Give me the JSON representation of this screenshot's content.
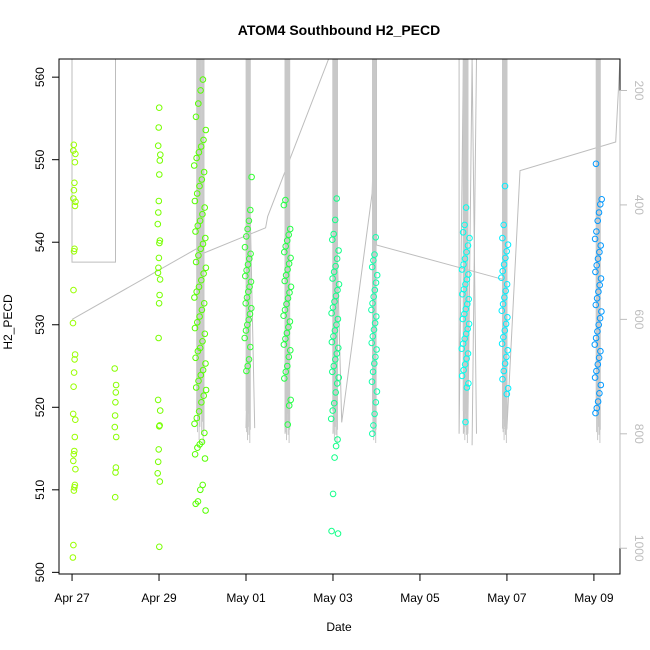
{
  "chart_data": {
    "type": "scatter",
    "title": "ATOM4 Southbound H2_PECD",
    "xlabel": "Date",
    "ylabel": "H2_PECD",
    "xlim": [
      -0.3,
      12.6
    ],
    "ylim": [
      499.8,
      562.2
    ],
    "y2lim": [
      1045,
      145
    ],
    "x_ticks": [
      {
        "value": 0,
        "label": "Apr 27"
      },
      {
        "value": 2,
        "label": "Apr 29"
      },
      {
        "value": 4,
        "label": "May 01"
      },
      {
        "value": 6,
        "label": "May 03"
      },
      {
        "value": 8,
        "label": "May 05"
      },
      {
        "value": 10,
        "label": "May 07"
      },
      {
        "value": 12,
        "label": "May 09"
      }
    ],
    "y_ticks": [
      500,
      510,
      520,
      530,
      540,
      550,
      560
    ],
    "y2_ticks": [
      200,
      400,
      600,
      800,
      1000
    ],
    "clusters": [
      {
        "x": 0.05,
        "spread": 0.03,
        "color": "#99ff00",
        "points": [
          501.8,
          503.3,
          509.9,
          510.3,
          510.6,
          512.5,
          513.5,
          514.3,
          514.7,
          516.4,
          518.5,
          519.2,
          522.5,
          524.2,
          525.8,
          526.4,
          530.2,
          534.2,
          538.9,
          539.2,
          544.4,
          544.9,
          545.3,
          546.3,
          547.2,
          549.7,
          550.7,
          551.1,
          551.8
        ]
      },
      {
        "x": 1.0,
        "spread": 0.02,
        "color": "#88ff00",
        "points": [
          509.1,
          512.1,
          512.7,
          516.4,
          517.6,
          519.0,
          520.6,
          521.8,
          522.7,
          524.7
        ]
      },
      {
        "x": 2.0,
        "spread": 0.03,
        "color": "#77ff00",
        "points": [
          503.1,
          511.0,
          512.0,
          513.4,
          514.9,
          517.7,
          517.8,
          519.6,
          520.9,
          528.4,
          532.6,
          533.6,
          535.5,
          536.3,
          536.9,
          538.1,
          539.9,
          540.2,
          542.2,
          543.6,
          545.0,
          548.2,
          549.9,
          550.6,
          551.7,
          553.9,
          556.3
        ]
      },
      {
        "x": 2.95,
        "spread": 0.14,
        "color": "#55ff00",
        "points": [
          507.5,
          508.3,
          508.6,
          510.0,
          510.6,
          513.8,
          514.3,
          515.1,
          515.5,
          515.8,
          516.9,
          518.0,
          518.7,
          519.5,
          520.6,
          521.4,
          522.1,
          522.4,
          523.2,
          523.9,
          524.5,
          525.3,
          526.0,
          526.8,
          527.2,
          528.0,
          528.9,
          529.6,
          530.3,
          531.0,
          531.8,
          532.6,
          533.3,
          534.0,
          534.6,
          535.4,
          536.2,
          536.9,
          537.6,
          538.4,
          539.2,
          539.8,
          540.5,
          541.3,
          542.0,
          542.6,
          543.4,
          544.2,
          545.0,
          545.9,
          546.8,
          547.6,
          548.5,
          549.3,
          550.2,
          550.9,
          551.6,
          552.4,
          553.6,
          555.2,
          556.8,
          558.4,
          559.7
        ]
      },
      {
        "x": 4.05,
        "spread": 0.08,
        "color": "#33ff33",
        "points": [
          524.4,
          525.0,
          525.8,
          527.3,
          528.4,
          529.3,
          530.0,
          530.6,
          531.3,
          532.0,
          532.6,
          533.3,
          534.0,
          534.6,
          535.2,
          535.9,
          536.6,
          537.3,
          538.0,
          538.6,
          539.4,
          540.7,
          541.6,
          542.6,
          543.9,
          547.9
        ]
      },
      {
        "x": 4.95,
        "spread": 0.09,
        "color": "#22ff44",
        "points": [
          517.9,
          520.2,
          520.9,
          523.5,
          524.3,
          525.0,
          526.1,
          526.9,
          527.6,
          528.3,
          529.0,
          529.7,
          530.4,
          531.1,
          531.8,
          532.5,
          533.2,
          533.9,
          534.6,
          535.3,
          536.0,
          536.7,
          537.4,
          538.1,
          538.8,
          539.5,
          540.2,
          540.9,
          541.6,
          544.5,
          545.1
        ]
      },
      {
        "x": 6.05,
        "spread": 0.09,
        "color": "#11ff88",
        "points": [
          504.7,
          505.0,
          509.5,
          513.9,
          515.3,
          516.1,
          518.6,
          519.6,
          520.5,
          521.8,
          522.9,
          523.6,
          524.3,
          525.0,
          525.8,
          526.5,
          527.2,
          527.9,
          528.6,
          529.3,
          530.0,
          530.7,
          531.4,
          532.1,
          532.8,
          533.5,
          534.2,
          534.9,
          535.6,
          536.4,
          537.1,
          538.0,
          539.0,
          540.3,
          541.0,
          542.7,
          545.3
        ]
      },
      {
        "x": 6.95,
        "spread": 0.07,
        "color": "#11ffaa",
        "points": [
          516.8,
          517.8,
          519.2,
          520.6,
          521.9,
          523.1,
          524.3,
          525.3,
          526.1,
          527.0,
          527.8,
          528.6,
          529.4,
          530.2,
          531.0,
          531.8,
          532.6,
          533.4,
          534.2,
          535.1,
          536.0,
          537.0,
          537.8,
          538.5,
          540.6
        ]
      },
      {
        "x": 9.05,
        "spread": 0.09,
        "color": "#00ffee",
        "points": [
          518.2,
          522.4,
          522.9,
          523.8,
          524.5,
          525.2,
          525.9,
          526.5,
          527.1,
          527.7,
          528.3,
          528.9,
          529.5,
          530.1,
          530.7,
          531.3,
          531.9,
          532.5,
          533.1,
          533.7,
          534.3,
          534.9,
          535.5,
          536.1,
          536.7,
          537.3,
          538.0,
          538.8,
          539.6,
          540.5,
          541.2,
          542.1,
          544.2
        ]
      },
      {
        "x": 9.95,
        "spread": 0.08,
        "color": "#00eeff",
        "points": [
          521.6,
          522.3,
          523.4,
          524.4,
          525.3,
          526.1,
          526.9,
          527.7,
          528.5,
          529.3,
          530.1,
          530.9,
          531.7,
          532.5,
          533.3,
          534.1,
          534.9,
          535.7,
          536.5,
          537.3,
          538.1,
          538.9,
          539.7,
          540.5,
          542.1,
          546.8
        ]
      },
      {
        "x": 12.1,
        "spread": 0.08,
        "color": "#0099ff",
        "points": [
          519.3,
          519.9,
          520.7,
          521.7,
          522.7,
          523.6,
          524.4,
          525.2,
          526.0,
          526.8,
          527.6,
          528.4,
          529.2,
          530.0,
          530.8,
          531.6,
          532.4,
          533.2,
          534.0,
          534.8,
          535.6,
          536.4,
          537.2,
          538.0,
          538.8,
          539.6,
          540.4,
          541.3,
          542.6,
          543.6,
          544.6,
          545.2,
          549.5
        ]
      }
    ],
    "gray_paths": [
      [
        [
          0.0,
          145
        ],
        [
          0.0,
          500
        ],
        [
          1.0,
          500
        ],
        [
          1.0,
          145
        ]
      ],
      [
        [
          0.0,
          600
        ],
        [
          2.9,
          475
        ],
        [
          3.0,
          485
        ],
        [
          4.45,
          440
        ],
        [
          4.5,
          420
        ],
        [
          5.9,
          145
        ]
      ],
      [
        [
          4.0,
          790
        ],
        [
          4.1,
          420
        ],
        [
          4.2,
          790
        ]
      ],
      [
        [
          4.9,
          145
        ],
        [
          4.9,
          800
        ],
        [
          5.0,
          145
        ],
        [
          5.0,
          790
        ]
      ],
      [
        [
          6.0,
          800
        ],
        [
          6.1,
          490
        ],
        [
          6.2,
          780
        ],
        [
          6.9,
          380
        ],
        [
          7.0,
          145
        ],
        [
          7.0,
          470
        ]
      ],
      [
        [
          7.0,
          470
        ],
        [
          9.9,
          530
        ],
        [
          10.0,
          470
        ]
      ],
      [
        [
          8.9,
          145
        ],
        [
          8.9,
          800
        ],
        [
          9.0,
          145
        ],
        [
          9.0,
          800
        ],
        [
          9.1,
          145
        ],
        [
          9.1,
          800
        ],
        [
          9.2,
          145
        ],
        [
          9.3,
          800
        ]
      ],
      [
        [
          9.2,
          820
        ],
        [
          9.3,
          145
        ]
      ],
      [
        [
          9.9,
          145
        ],
        [
          9.9,
          790
        ],
        [
          10.0,
          790
        ],
        [
          10.0,
          145
        ]
      ],
      [
        [
          10.0,
          790
        ],
        [
          10.3,
          340
        ],
        [
          12.5,
          290
        ],
        [
          12.6,
          145
        ]
      ],
      [
        [
          12.1,
          145
        ],
        [
          12.1,
          760
        ]
      ]
    ]
  }
}
